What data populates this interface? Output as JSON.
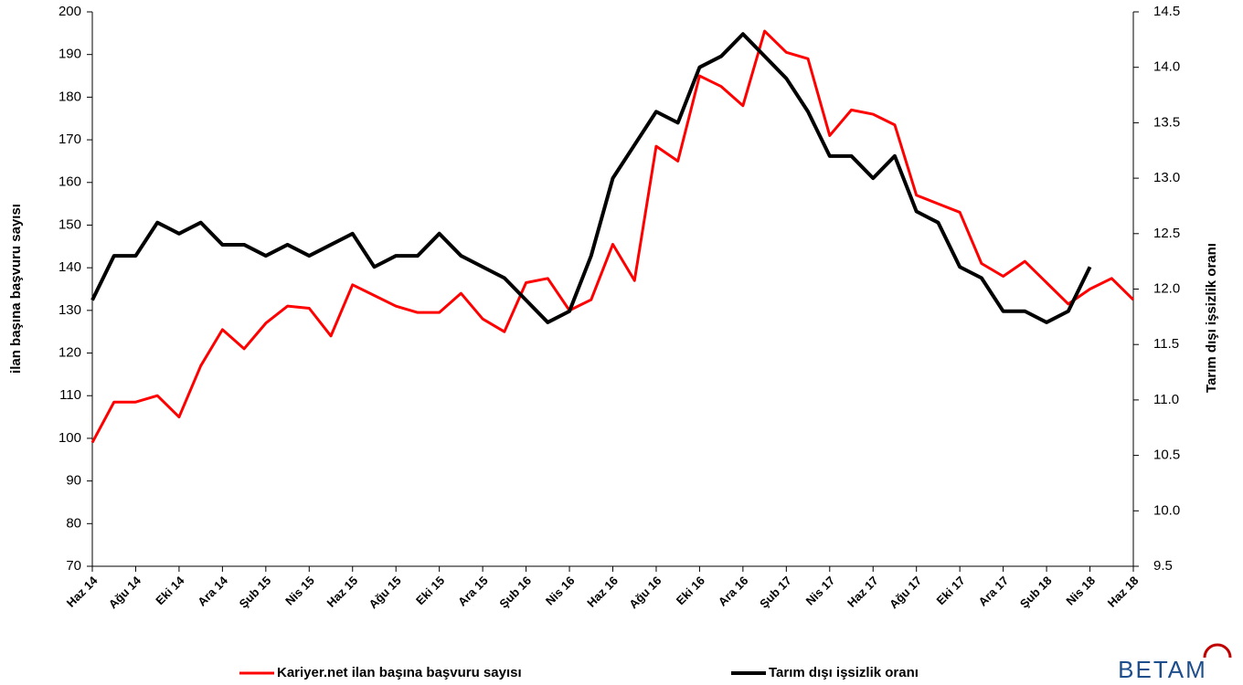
{
  "chart_data": {
    "type": "line",
    "categories": [
      "Haz 14",
      null,
      "Ağu 14",
      null,
      "Eki 14",
      null,
      "Ara 14",
      null,
      "Şub 15",
      null,
      "Nis 15",
      null,
      "Haz 15",
      null,
      "Ağu 15",
      null,
      "Eki 15",
      null,
      "Ara 15",
      null,
      "Şub 16",
      null,
      "Nis 16",
      null,
      "Haz 16",
      null,
      "Ağu 16",
      null,
      "Eki 16",
      null,
      "Ara 16",
      null,
      "Şub 17",
      null,
      "Nis 17",
      null,
      "Haz 17",
      null,
      "Ağu 17",
      null,
      "Eki 17",
      null,
      "Ara 17",
      null,
      "Şub 18",
      null,
      "Nis 18",
      null,
      "Haz 18"
    ],
    "ylabel": "ilan başına başvuru sayısı",
    "y2label": "Tarım dışı işsizlik oranı",
    "ylim": [
      70,
      200
    ],
    "yticks": [
      70,
      80,
      90,
      100,
      110,
      120,
      130,
      140,
      150,
      160,
      170,
      180,
      190,
      200
    ],
    "y2lim": [
      9.5,
      14.5
    ],
    "y2ticks": [
      9.5,
      {
        "value": 10,
        "label": "10.0"
      },
      10.5,
      {
        "value": 11,
        "label": "11.0"
      },
      11.5,
      {
        "value": 12,
        "label": "12.0"
      },
      12.5,
      {
        "value": 13,
        "label": "13.0"
      },
      13.5,
      {
        "value": 14,
        "label": "14.0"
      },
      14.5
    ],
    "series": [
      {
        "name": "Kariyer.net ilan başına başvuru sayısı",
        "color": "#ff0000",
        "axis": "y",
        "values": [
          99,
          108.5,
          108.5,
          110,
          105,
          117,
          125.5,
          121,
          127,
          131,
          130.5,
          124,
          136,
          133.5,
          131,
          129.5,
          129.5,
          134,
          128,
          125,
          136.5,
          137.5,
          130,
          132.5,
          145.5,
          137,
          168.5,
          165,
          185,
          182.5,
          178,
          195.5,
          190.5,
          189,
          171,
          177,
          176,
          173.5,
          157,
          155,
          153,
          141,
          138,
          141.5,
          136.5,
          131.5,
          135,
          137.5,
          132.5
        ]
      },
      {
        "name": "Tarım dışı işsizlik oranı",
        "color": "#000000",
        "axis": "y2",
        "values": [
          11.9,
          12.3,
          12.3,
          12.6,
          12.5,
          12.6,
          12.4,
          12.4,
          12.3,
          12.4,
          12.3,
          12.4,
          12.5,
          12.2,
          12.3,
          12.3,
          12.5,
          12.3,
          12.2,
          12.1,
          11.9,
          11.7,
          11.8,
          12.3,
          13.0,
          13.3,
          13.6,
          13.5,
          14.0,
          14.1,
          14.3,
          14.1,
          13.9,
          13.6,
          13.2,
          13.2,
          13.0,
          13.2,
          12.7,
          12.6,
          12.2,
          12.1,
          11.8,
          11.8,
          11.7,
          11.8,
          12.2,
          null,
          null
        ]
      }
    ],
    "logo": "BETAM"
  }
}
